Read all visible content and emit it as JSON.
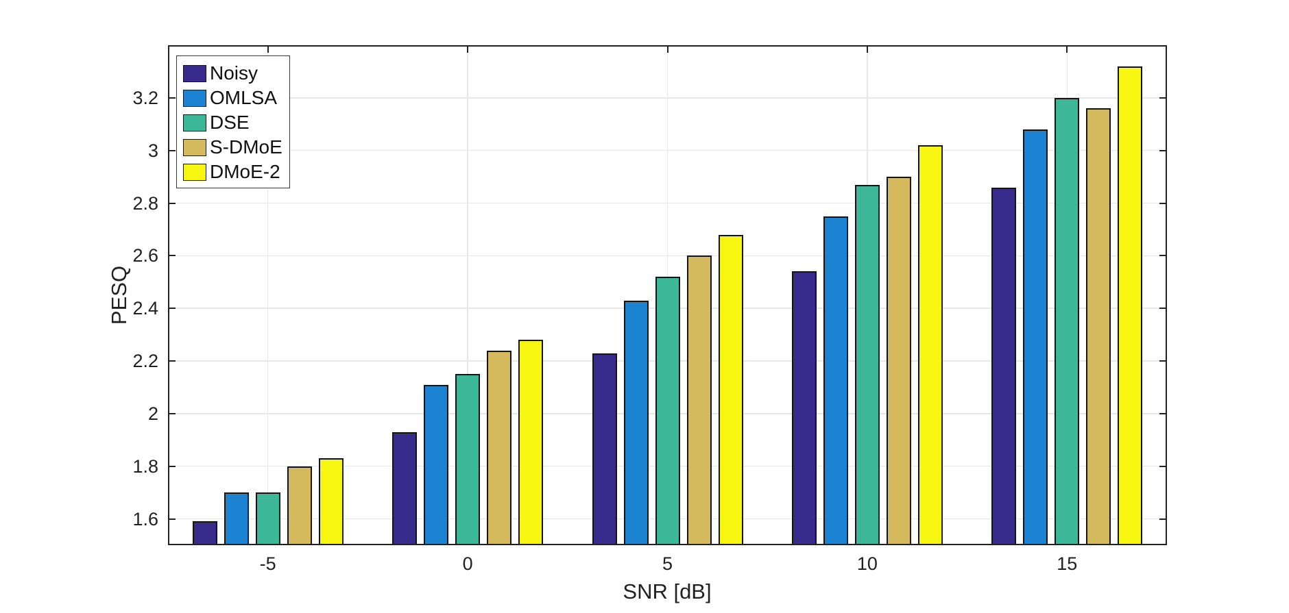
{
  "chart_data": {
    "type": "bar",
    "title": "",
    "xlabel": "SNR [dB]",
    "ylabel": "PESQ",
    "categories": [
      "-5",
      "0",
      "5",
      "10",
      "15"
    ],
    "series": [
      {
        "name": "Noisy",
        "color": "#382B8C",
        "values": [
          1.59,
          1.93,
          2.23,
          2.54,
          2.86
        ]
      },
      {
        "name": "OMLSA",
        "color": "#1B83D1",
        "values": [
          1.7,
          2.11,
          2.43,
          2.75,
          3.08
        ]
      },
      {
        "name": "DSE",
        "color": "#3CB899",
        "values": [
          1.7,
          2.15,
          2.52,
          2.87,
          3.2
        ]
      },
      {
        "name": "S-DMoE",
        "color": "#D5B95D",
        "values": [
          1.8,
          2.24,
          2.6,
          2.9,
          3.16
        ]
      },
      {
        "name": "DMoE-2",
        "color": "#F7F611",
        "values": [
          1.83,
          2.28,
          2.68,
          3.02,
          3.32
        ]
      }
    ],
    "ylim": [
      1.5,
      3.4
    ],
    "yticks": [
      1.6,
      1.8,
      2.0,
      2.2,
      2.4,
      2.6,
      2.8,
      3.0,
      3.2
    ],
    "ytick_labels": [
      "1.6",
      "1.8",
      "2",
      "2.2",
      "2.4",
      "2.6",
      "2.8",
      "3",
      "3.2"
    ],
    "grid": true,
    "legend_position": "top-left",
    "colors": {
      "axis": "#212121",
      "grid": "#E7E7E7",
      "background": "#FFFFFF",
      "bar_edge": "#141414"
    }
  }
}
